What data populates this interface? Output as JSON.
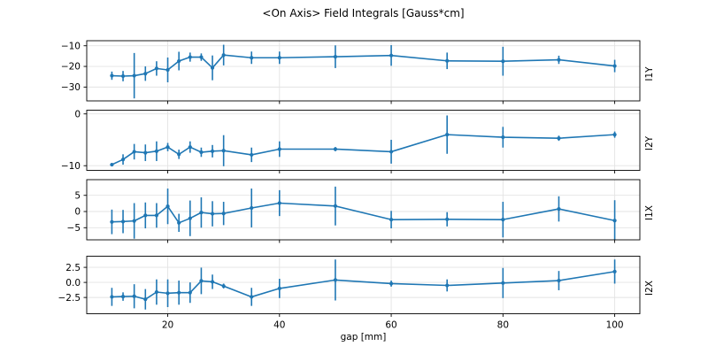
{
  "figure": {
    "title": "<On Axis> Field Integrals [Gauss*cm]",
    "xlabel": "gap [mm]"
  },
  "colors": {
    "line": "#1f77b4",
    "grid": "#e3e3e3",
    "spine": "#000000",
    "text": "#000000",
    "background": "#ffffff"
  },
  "chart_data": {
    "type": "line",
    "title": "<On Axis> Field Integrals [Gauss*cm]",
    "xlabel": "gap [mm]",
    "grid": true,
    "marker": "point",
    "error_bars": "vertical",
    "x": [
      10,
      12,
      14,
      16,
      18,
      20,
      22,
      24,
      26,
      28,
      30,
      35,
      40,
      50,
      60,
      70,
      80,
      90,
      100
    ],
    "xticks": [
      20,
      40,
      60,
      80,
      100
    ],
    "xtick_labels": [
      "20",
      "40",
      "60",
      "80",
      "100"
    ],
    "xlim": [
      5.5,
      104.5
    ],
    "subplots": [
      {
        "ylabel": "I1Y",
        "ylim": [
          -36.7,
          -7.55
        ],
        "yticks": [
          -10,
          -20,
          -30
        ],
        "ytick_labels": [
          "−10",
          "−20",
          "−30"
        ],
        "values": [
          -24.5,
          -24.7,
          -24.5,
          -23.5,
          -21.0,
          -21.7,
          -17.4,
          -15.5,
          -15.5,
          -20.7,
          -14.5,
          -15.8,
          -15.8,
          -15.3,
          -14.7,
          -17.3,
          -17.5,
          -16.8,
          -19.8
        ],
        "errors": [
          2.0,
          2.5,
          11.0,
          3.5,
          3.5,
          6.0,
          4.5,
          2.2,
          1.8,
          6.0,
          5.0,
          3.0,
          3.0,
          5.5,
          5.0,
          4.0,
          7.0,
          2.0,
          3.0
        ]
      },
      {
        "ylabel": "I2Y",
        "ylim": [
          -10.9,
          0.72
        ],
        "yticks": [
          0,
          -10
        ],
        "ytick_labels": [
          "0",
          "−10"
        ],
        "values": [
          -9.8,
          -8.8,
          -7.3,
          -7.5,
          -7.2,
          -6.4,
          -7.8,
          -6.4,
          -7.4,
          -7.2,
          -7.1,
          -7.9,
          -6.8,
          -6.8,
          -7.3,
          -4.0,
          -4.5,
          -4.7,
          -4.0
        ],
        "errors": [
          0.3,
          1.0,
          1.5,
          1.6,
          1.9,
          0.8,
          0.9,
          1.1,
          0.9,
          1.2,
          3.0,
          1.4,
          1.5,
          0.4,
          2.3,
          3.7,
          2.0,
          0.5,
          0.6
        ]
      },
      {
        "ylabel": "I1X",
        "ylim": [
          -8.75,
          9.85
        ],
        "yticks": [
          5,
          0,
          -5
        ],
        "ytick_labels": [
          "5",
          "0",
          "−5"
        ],
        "values": [
          -3.2,
          -3.1,
          -2.9,
          -1.2,
          -1.2,
          1.6,
          -3.5,
          -2.1,
          -0.3,
          -0.7,
          -0.6,
          1.1,
          2.6,
          1.7,
          -2.5,
          -2.4,
          -2.5,
          0.8,
          -2.8
        ],
        "errors": [
          3.8,
          3.6,
          5.5,
          4.0,
          3.8,
          5.5,
          2.8,
          5.5,
          4.7,
          3.9,
          3.6,
          6.0,
          4.0,
          6.0,
          2.7,
          2.2,
          5.5,
          3.9,
          6.3
        ]
      },
      {
        "ylabel": "I2X",
        "ylim": [
          -5.2,
          4.35
        ],
        "yticks": [
          2.5,
          0.0,
          -2.5
        ],
        "ytick_labels": [
          "2.5",
          "0.0",
          "−2.5"
        ],
        "values": [
          -2.4,
          -2.35,
          -2.3,
          -2.8,
          -1.6,
          -1.8,
          -1.7,
          -1.7,
          0.25,
          0.1,
          -0.6,
          -2.4,
          -1.0,
          0.4,
          -0.2,
          -0.5,
          -0.1,
          0.3,
          1.8
        ],
        "errors": [
          1.5,
          0.7,
          2.0,
          1.7,
          2.1,
          2.3,
          2.0,
          1.7,
          2.2,
          1.2,
          0.4,
          1.5,
          1.6,
          3.4,
          0.5,
          1.0,
          2.5,
          1.6,
          2.0
        ]
      }
    ]
  }
}
